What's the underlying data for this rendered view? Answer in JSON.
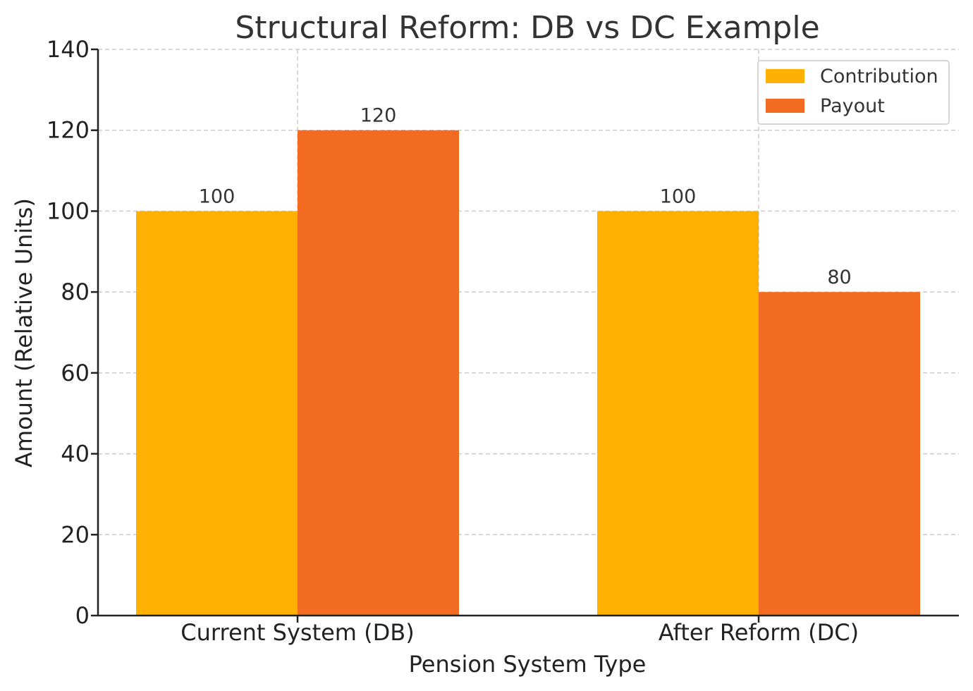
{
  "chart_data": {
    "type": "bar",
    "title": "Structural Reform: DB vs DC Example",
    "xlabel": "Pension System Type",
    "ylabel": "Amount (Relative Units)",
    "categories": [
      "Current System (DB)",
      "After Reform (DC)"
    ],
    "series": [
      {
        "name": "Contribution",
        "values": [
          100,
          100
        ],
        "color": "#FFB000"
      },
      {
        "name": "Payout",
        "values": [
          120,
          80
        ],
        "color": "#F26B21"
      }
    ],
    "ylim": [
      0,
      140
    ],
    "yticks": [
      0,
      20,
      40,
      60,
      80,
      100,
      120,
      140
    ],
    "grid": true,
    "legend_position": "top-right",
    "data_labels": true
  }
}
